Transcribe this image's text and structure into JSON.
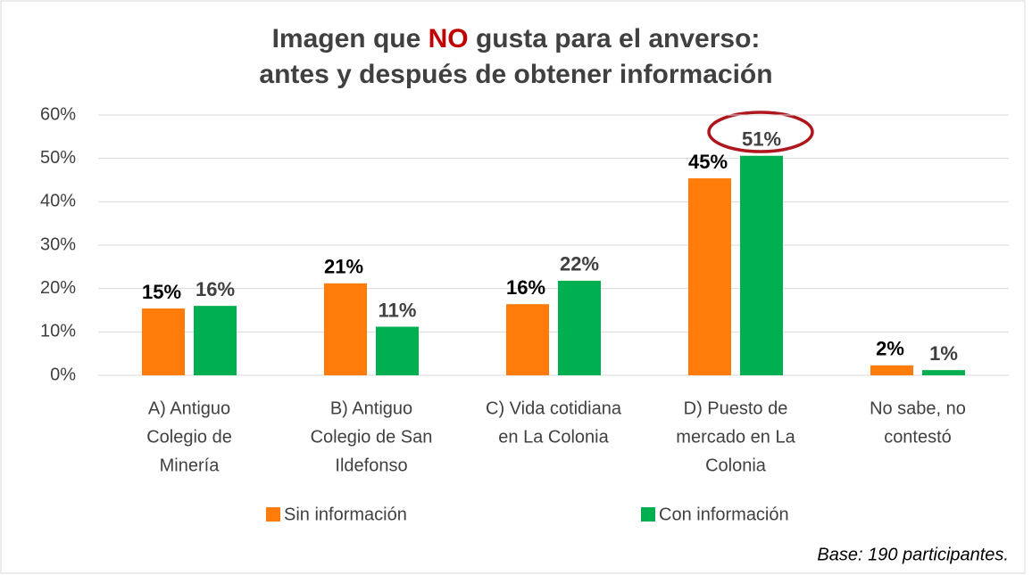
{
  "chart_data": {
    "type": "bar",
    "title": [
      "Imagen que ",
      "NO",
      " gusta para el anverso:",
      "antes y después de obtener información"
    ],
    "title_highlight_color": "#c00000",
    "categories": [
      [
        "A) Antiguo",
        "Colegio de",
        "Minería"
      ],
      [
        "B) Antiguo",
        "Colegio de San",
        "Ildefonso"
      ],
      [
        "C) Vida cotidiana",
        "en La Colonia"
      ],
      [
        "D) Puesto de",
        "mercado en La",
        "Colonia"
      ],
      [
        "No sabe, no",
        "contestó"
      ]
    ],
    "series": [
      {
        "name": "Sin información",
        "color": "#ff7c0a",
        "label_color": "#000000",
        "values": [
          15.4,
          21.2,
          16.4,
          45.4,
          2.3
        ],
        "value_labels": [
          "15%",
          "21%",
          "16%",
          "45%",
          "2%"
        ]
      },
      {
        "name": "Con información",
        "color": "#00b050",
        "label_color": "#404040",
        "values": [
          16.0,
          11.2,
          21.8,
          50.6,
          1.2
        ],
        "value_labels": [
          "16%",
          "11%",
          "22%",
          "51%",
          "1%"
        ]
      }
    ],
    "ylim": [
      0,
      60
    ],
    "yticks": [
      {
        "value": 0,
        "label": "0%"
      },
      {
        "value": 10,
        "label": "10%"
      },
      {
        "value": 20,
        "label": "20%"
      },
      {
        "value": 30,
        "label": "30%"
      },
      {
        "value": 40,
        "label": "40%"
      },
      {
        "value": 50,
        "label": "50%"
      },
      {
        "value": 60,
        "label": "60%"
      }
    ],
    "grid": true,
    "legend": "bottom",
    "footnote": "Base: 190 participantes."
  }
}
